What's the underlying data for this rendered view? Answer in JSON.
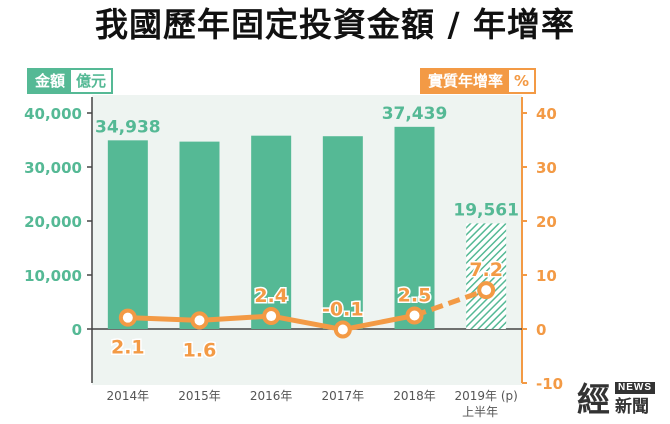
{
  "title": "我國歷年固定投資金額 / 年增率",
  "legend": {
    "left_label": "金額",
    "left_unit": "億元",
    "right_label": "實質年增率",
    "right_unit": "%"
  },
  "colors": {
    "bar": "#55b995",
    "line": "#f39a45",
    "axis_left": "#55b995",
    "axis_right": "#f39a45",
    "category": "#555555"
  },
  "chart_data": {
    "type": "bar+line",
    "title": "我國歷年固定投資金額 / 年增率",
    "categories": [
      "2014年",
      "2015年",
      "2016年",
      "2017年",
      "2018年",
      "2019年 (p)"
    ],
    "category_sublabels": [
      "",
      "",
      "",
      "",
      "",
      "上半年"
    ],
    "left_axis": {
      "unit": "億元",
      "ylim": [
        -10000,
        40000
      ],
      "ticks": [
        0,
        10000,
        20000,
        30000,
        40000
      ],
      "tick_labels": [
        "0",
        "10,000",
        "20,000",
        "30,000",
        "40,000"
      ]
    },
    "right_axis": {
      "unit": "%",
      "ylim": [
        -10,
        40
      ],
      "ticks": [
        -10,
        0,
        10,
        20,
        30,
        40
      ],
      "tick_labels": [
        "-10",
        "0",
        "10",
        "20",
        "30",
        "40"
      ]
    },
    "series": [
      {
        "name": "金額",
        "type": "bar",
        "axis": "left",
        "values": [
          34938,
          34700,
          35800,
          35700,
          37439,
          19561
        ],
        "labels": [
          "34,938",
          "",
          "",
          "",
          "37,439",
          "19,561"
        ],
        "hatched_last": true
      },
      {
        "name": "實質年增率",
        "type": "line",
        "axis": "right",
        "values": [
          2.1,
          1.6,
          2.4,
          -0.1,
          2.5,
          7.2
        ],
        "labels": [
          "2.1",
          "1.6",
          "2.4",
          "-0.1",
          "2.5",
          "7.2"
        ],
        "dashed_last": true
      }
    ]
  },
  "logo": {
    "big": "經",
    "news": "NEWS",
    "small": "新聞"
  }
}
